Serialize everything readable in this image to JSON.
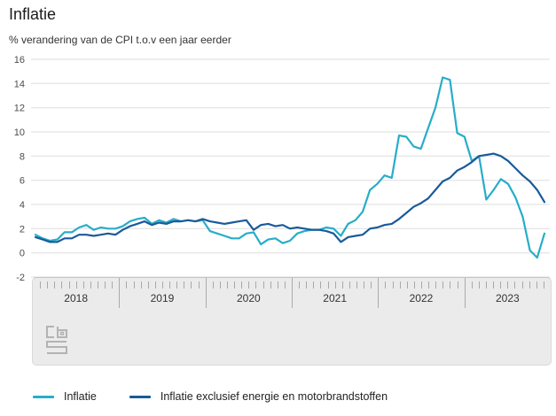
{
  "chart_data": {
    "type": "line",
    "title": "Inflatie",
    "subtitle": "% verandering van de CPI t.o.v een jaar eerder",
    "frequency": "monthly",
    "period_shown": "2018-01 t/m 2023-11",
    "years": [
      "2018",
      "2019",
      "2020",
      "2021",
      "2022",
      "2023"
    ],
    "ylim": [
      -2,
      16
    ],
    "yticks": [
      16,
      14,
      12,
      10,
      8,
      6,
      4,
      2,
      0,
      -2
    ],
    "grid": true,
    "legend_position": "bottom",
    "series": [
      {
        "name": "Inflatie",
        "color": "#27adc9",
        "values": [
          1.5,
          1.2,
          1.0,
          1.1,
          1.7,
          1.7,
          2.1,
          2.3,
          1.9,
          2.1,
          2.0,
          2.0,
          2.2,
          2.6,
          2.8,
          2.9,
          2.4,
          2.7,
          2.5,
          2.8,
          2.6,
          2.7,
          2.6,
          2.7,
          1.8,
          1.6,
          1.4,
          1.2,
          1.2,
          1.6,
          1.7,
          0.7,
          1.1,
          1.2,
          0.8,
          1.0,
          1.6,
          1.8,
          1.9,
          1.9,
          2.1,
          2.0,
          1.4,
          2.4,
          2.7,
          3.4,
          5.2,
          5.7,
          6.4,
          6.2,
          9.7,
          9.6,
          8.8,
          8.6,
          10.3,
          12.0,
          14.5,
          14.3,
          9.9,
          9.6,
          7.6,
          8.0,
          4.4,
          5.2,
          6.1,
          5.7,
          4.6,
          3.0,
          0.2,
          -0.4,
          1.6
        ]
      },
      {
        "name": "Inflatie exclusief energie en motorbrandstoffen",
        "color": "#1a5a9a",
        "values": [
          1.3,
          1.1,
          0.9,
          0.9,
          1.2,
          1.2,
          1.5,
          1.5,
          1.4,
          1.5,
          1.6,
          1.5,
          1.9,
          2.2,
          2.4,
          2.6,
          2.3,
          2.5,
          2.4,
          2.6,
          2.6,
          2.7,
          2.6,
          2.8,
          2.6,
          2.5,
          2.4,
          2.5,
          2.6,
          2.7,
          1.9,
          2.3,
          2.4,
          2.2,
          2.3,
          2.0,
          2.1,
          2.0,
          1.9,
          1.9,
          1.8,
          1.6,
          0.9,
          1.3,
          1.4,
          1.5,
          2.0,
          2.1,
          2.3,
          2.4,
          2.8,
          3.3,
          3.8,
          4.1,
          4.5,
          5.2,
          5.9,
          6.2,
          6.8,
          7.1,
          7.5,
          8.0,
          8.1,
          8.2,
          8.0,
          7.6,
          7.0,
          6.4,
          5.9,
          5.2,
          4.2
        ]
      }
    ],
    "colors": {
      "gridline": "#dedede",
      "axis_text": "#4c4c4c",
      "panel_bg": "#ebebeb"
    }
  },
  "branding": {
    "logo": "cbs-logo"
  }
}
